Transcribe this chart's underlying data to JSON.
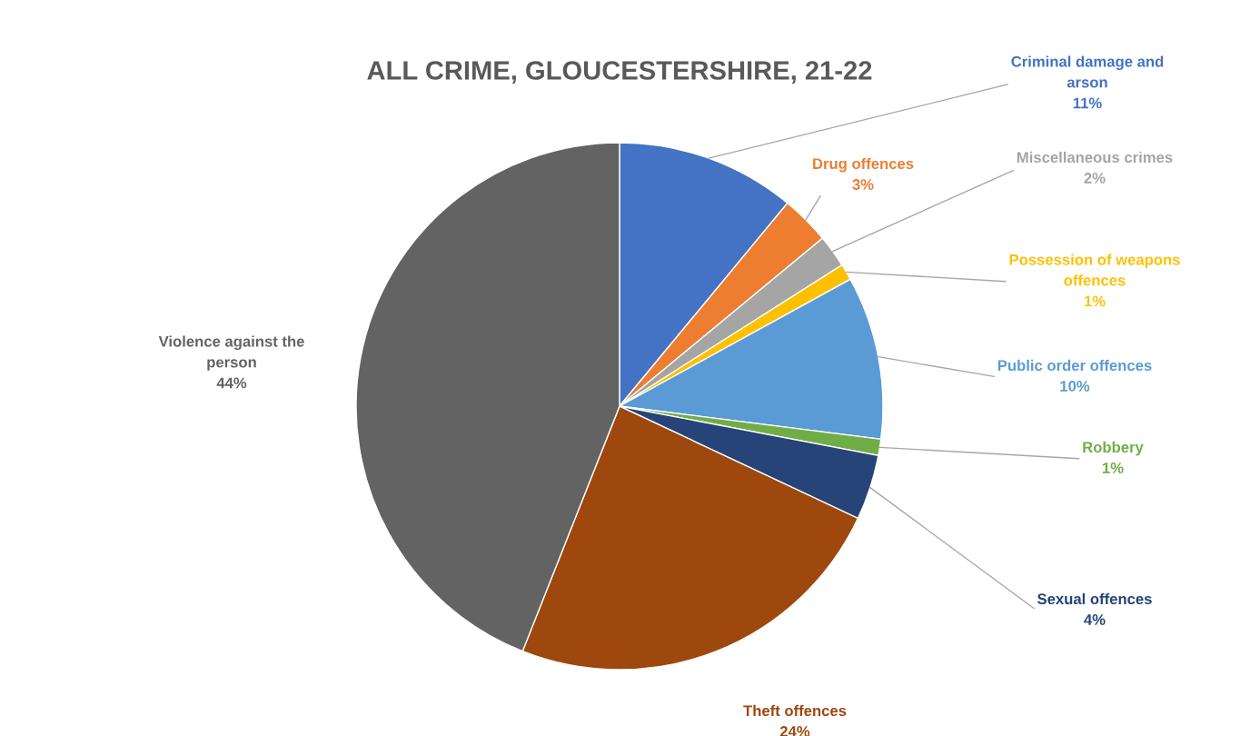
{
  "chart_data": {
    "type": "pie",
    "title": "ALL CRIME, GLOUCESTERSHIRE, 21-22",
    "categories": [
      "Criminal damage and arson",
      "Drug offences",
      "Miscellaneous crimes",
      "Possession of weapons offences",
      "Public order offences",
      "Robbery",
      "Sexual offences",
      "Theft offences",
      "Violence against the person"
    ],
    "values": [
      11,
      3,
      2,
      1,
      10,
      1,
      4,
      24,
      44
    ],
    "value_labels": [
      "11%",
      "3%",
      "2%",
      "1%",
      "10%",
      "1%",
      "4%",
      "24%",
      "44%"
    ],
    "colors": [
      "#4472c4",
      "#ed7d31",
      "#a5a5a5",
      "#ffc000",
      "#5b9bd5",
      "#70ad47",
      "#264478",
      "#9e480e",
      "#636363"
    ]
  }
}
